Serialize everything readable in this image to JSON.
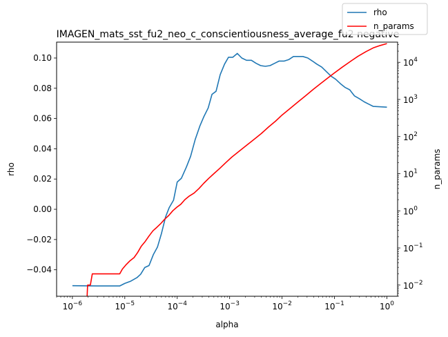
{
  "chart_data": {
    "type": "line",
    "title": "IMAGEN_mats_sst_fu2_neo_c_conscientiousness_average_fu2 negative",
    "xlabel": "alpha",
    "ylabel_left": "rho",
    "ylabel_right": "n_params",
    "x_scale": "log",
    "xlim": [
      5e-07,
      1.6
    ],
    "ylim_left": [
      -0.0575,
      0.1105
    ],
    "ylim_right": [
      0.005,
      35000
    ],
    "y_right_scale": "log",
    "x_ticks": [
      {
        "exp": "-6",
        "value": 1e-06
      },
      {
        "exp": "-5",
        "value": 1e-05
      },
      {
        "exp": "-4",
        "value": 0.0001
      },
      {
        "exp": "-3",
        "value": 0.001
      },
      {
        "exp": "-2",
        "value": 0.01
      },
      {
        "exp": "-1",
        "value": 0.1
      },
      {
        "exp": "0",
        "value": 1
      }
    ],
    "y_left_ticks": [
      "−0.04",
      "−0.02",
      "0.00",
      "0.02",
      "0.04",
      "0.06",
      "0.08",
      "0.10"
    ],
    "y_left_tick_values": [
      -0.04,
      -0.02,
      0.0,
      0.02,
      0.04,
      0.06,
      0.08,
      0.1
    ],
    "y_right_ticks": [
      {
        "exp": "−2",
        "value": 0.01
      },
      {
        "exp": "−1",
        "value": 0.1
      },
      {
        "exp": "0",
        "value": 1
      },
      {
        "exp": "1",
        "value": 10
      },
      {
        "exp": "2",
        "value": 100
      },
      {
        "exp": "3",
        "value": 1000
      },
      {
        "exp": "4",
        "value": 10000
      }
    ],
    "tick_base": "10",
    "legend_position": "top-right",
    "series": [
      {
        "name": "rho",
        "axis": "left",
        "color": "#1f77b4",
        "points": [
          [
            1e-06,
            -0.0505
          ],
          [
            2e-06,
            -0.0506
          ],
          [
            3e-06,
            -0.0507
          ],
          [
            5e-06,
            -0.0507
          ],
          [
            8e-06,
            -0.0507
          ],
          [
            1e-05,
            -0.049
          ],
          [
            1.3e-05,
            -0.0475
          ],
          [
            1.7e-05,
            -0.0452
          ],
          [
            2e-05,
            -0.043
          ],
          [
            2.4e-05,
            -0.0385
          ],
          [
            2.9e-05,
            -0.0372
          ],
          [
            3.5e-05,
            -0.03
          ],
          [
            4.2e-05,
            -0.025
          ],
          [
            5e-05,
            -0.016
          ],
          [
            6e-05,
            -0.005
          ],
          [
            7e-05,
            0.001
          ],
          [
            8.5e-05,
            0.006
          ],
          [
            0.0001,
            0.018
          ],
          [
            0.00012,
            0.0205
          ],
          [
            0.00015,
            0.028
          ],
          [
            0.00018,
            0.035
          ],
          [
            0.00022,
            0.046
          ],
          [
            0.00027,
            0.055
          ],
          [
            0.00032,
            0.061
          ],
          [
            0.00039,
            0.067
          ],
          [
            0.00046,
            0.076
          ],
          [
            0.00055,
            0.078
          ],
          [
            0.00066,
            0.089
          ],
          [
            0.0008,
            0.096
          ],
          [
            0.00095,
            0.1005
          ],
          [
            0.00115,
            0.1005
          ],
          [
            0.0014,
            0.103
          ],
          [
            0.0017,
            0.1
          ],
          [
            0.0021,
            0.0985
          ],
          [
            0.0026,
            0.0985
          ],
          [
            0.0032,
            0.0965
          ],
          [
            0.0039,
            0.095
          ],
          [
            0.0048,
            0.0945
          ],
          [
            0.0059,
            0.095
          ],
          [
            0.0072,
            0.0965
          ],
          [
            0.0088,
            0.098
          ],
          [
            0.011,
            0.098
          ],
          [
            0.0135,
            0.099
          ],
          [
            0.0165,
            0.101
          ],
          [
            0.02,
            0.101
          ],
          [
            0.025,
            0.101
          ],
          [
            0.031,
            0.1
          ],
          [
            0.038,
            0.098
          ],
          [
            0.046,
            0.096
          ],
          [
            0.057,
            0.094
          ],
          [
            0.07,
            0.091
          ],
          [
            0.086,
            0.088
          ],
          [
            0.105,
            0.086
          ],
          [
            0.13,
            0.083
          ],
          [
            0.16,
            0.0805
          ],
          [
            0.195,
            0.079
          ],
          [
            0.24,
            0.075
          ],
          [
            0.3,
            0.073
          ],
          [
            0.37,
            0.071
          ],
          [
            0.45,
            0.0695
          ],
          [
            0.55,
            0.068
          ],
          [
            1.0,
            0.0675
          ]
        ]
      },
      {
        "name": "n_params",
        "axis": "right",
        "color": "#ff0000",
        "points": [
          [
            1.9e-06,
            0.004
          ],
          [
            1.95e-06,
            0.01
          ],
          [
            2.2e-06,
            0.01
          ],
          [
            2.4e-06,
            0.02
          ],
          [
            3e-06,
            0.02
          ],
          [
            4e-06,
            0.02
          ],
          [
            5e-06,
            0.02
          ],
          [
            6e-06,
            0.02
          ],
          [
            8e-06,
            0.02
          ],
          [
            9e-06,
            0.027
          ],
          [
            1.05e-05,
            0.035
          ],
          [
            1.25e-05,
            0.045
          ],
          [
            1.5e-05,
            0.055
          ],
          [
            1.75e-05,
            0.075
          ],
          [
            2.05e-05,
            0.11
          ],
          [
            2.45e-05,
            0.15
          ],
          [
            2.9e-05,
            0.21
          ],
          [
            3.45e-05,
            0.29
          ],
          [
            4.1e-05,
            0.36
          ],
          [
            4.9e-05,
            0.46
          ],
          [
            5.8e-05,
            0.6
          ],
          [
            6.9e-05,
            0.75
          ],
          [
            8.2e-05,
            1.0
          ],
          [
            9.8e-05,
            1.25
          ],
          [
            0.000117,
            1.5
          ],
          [
            0.00014,
            2.0
          ],
          [
            0.00017,
            2.5
          ],
          [
            0.00021,
            3.0
          ],
          [
            0.00026,
            4.0
          ],
          [
            0.00032,
            5.5
          ],
          [
            0.0004,
            7.5
          ],
          [
            0.0005,
            10
          ],
          [
            0.00065,
            14
          ],
          [
            0.00085,
            20
          ],
          [
            0.0011,
            28
          ],
          [
            0.0015,
            40
          ],
          [
            0.002,
            55
          ],
          [
            0.0028,
            80
          ],
          [
            0.004,
            120
          ],
          [
            0.0055,
            180
          ],
          [
            0.0075,
            260
          ],
          [
            0.01,
            380
          ],
          [
            0.014,
            560
          ],
          [
            0.02,
            850
          ],
          [
            0.028,
            1250
          ],
          [
            0.04,
            1900
          ],
          [
            0.055,
            2700
          ],
          [
            0.075,
            3800
          ],
          [
            0.1,
            5200
          ],
          [
            0.14,
            7400
          ],
          [
            0.2,
            10500
          ],
          [
            0.28,
            14500
          ],
          [
            0.4,
            19500
          ],
          [
            0.55,
            24500
          ],
          [
            0.75,
            28500
          ],
          [
            1.0,
            32000
          ]
        ]
      }
    ]
  }
}
